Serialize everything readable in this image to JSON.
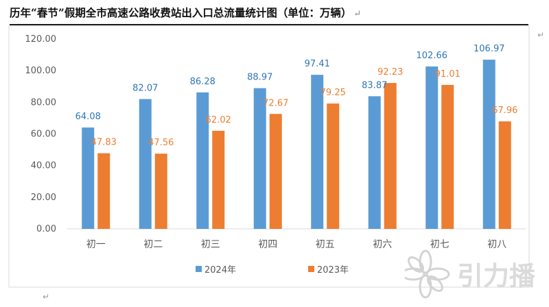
{
  "document": {
    "title": "历年“春节”假期全市高速公路收费站出入口总流量统计图（单位：万辆）",
    "paragraph_mark": "↵"
  },
  "chart_data": {
    "type": "bar",
    "categories": [
      "初一",
      "初二",
      "初三",
      "初四",
      "初五",
      "初六",
      "初七",
      "初八"
    ],
    "series": [
      {
        "name": "2024年",
        "values": [
          64.08,
          82.07,
          86.28,
          88.97,
          97.41,
          83.87,
          102.66,
          106.97
        ],
        "color": "#5b9bd5",
        "label_color": "#2e75b6"
      },
      {
        "name": "2023年",
        "values": [
          47.83,
          47.56,
          62.02,
          72.67,
          79.25,
          92.23,
          91.01,
          67.96
        ],
        "color": "#ed7d31",
        "label_color": "#ed7d31"
      }
    ],
    "y_ticks": [
      "0.00",
      "20.00",
      "40.00",
      "60.00",
      "80.00",
      "100.00",
      "120.00"
    ],
    "ylim": [
      0,
      120
    ],
    "grid": false,
    "legend_position": "bottom-center",
    "xlabel": "",
    "ylabel": ""
  },
  "watermark": {
    "icon": "flower-logo-icon",
    "text": "引力播"
  }
}
